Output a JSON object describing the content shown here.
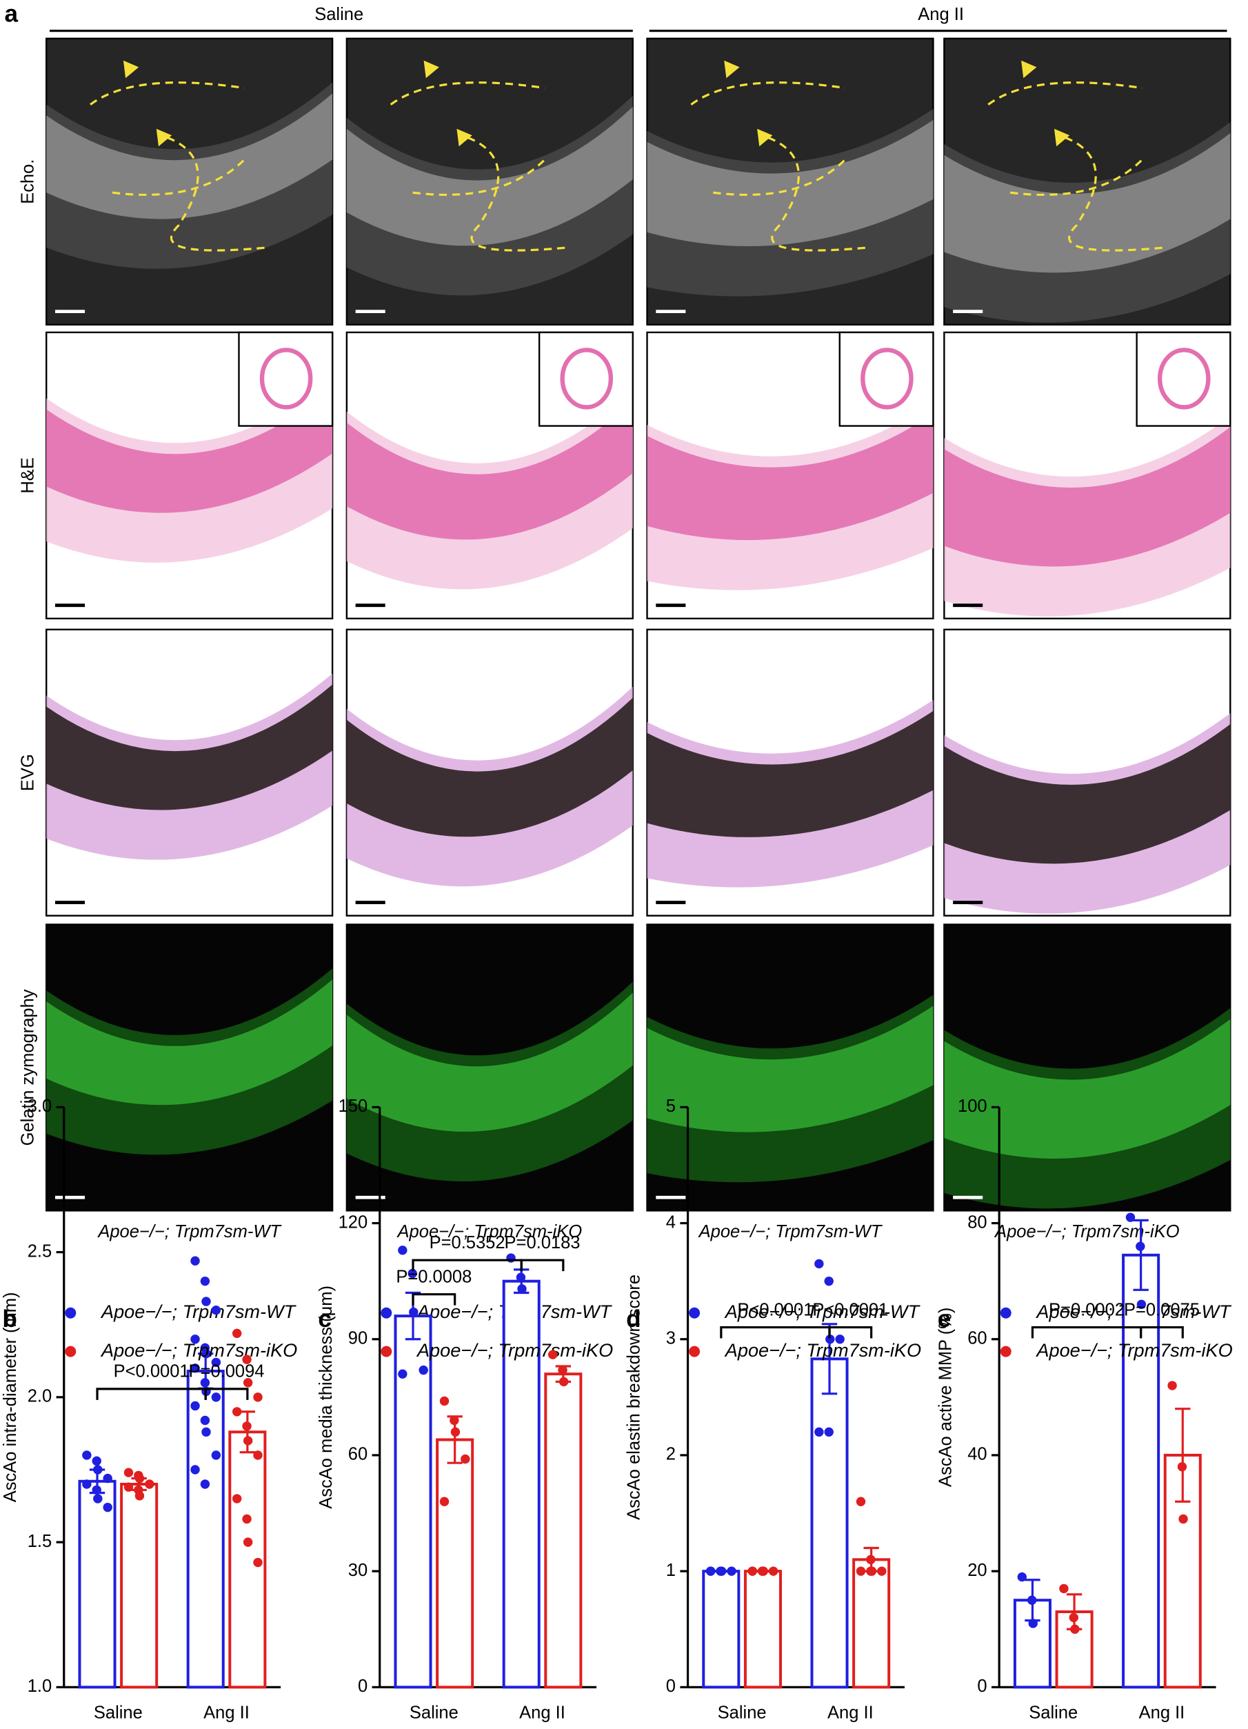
{
  "figure": {
    "panel_label": "a",
    "groups": [
      "Saline",
      "Ang II"
    ],
    "rows": [
      "Echo.",
      "H&E",
      "EVG",
      "Gelatin zymography"
    ],
    "columns": [
      "Apoe−/−; Trpm7sm-WT",
      "Apoe−/−; Trpm7sm-iKO",
      "Apoe−/−; Trpm7sm-WT",
      "Apoe−/−; Trpm7sm-iKO"
    ]
  },
  "chart_data": [
    {
      "type": "bar",
      "panel_label": "b",
      "ylabel": "AscAo intra-diameter (mm)",
      "categories": [
        "Saline",
        "Ang II"
      ],
      "ylim": [
        1,
        3
      ],
      "yticks": [
        {
          "value": 1,
          "label": "1.0"
        },
        1.5,
        {
          "value": 2,
          "label": "2.0"
        },
        2.5,
        {
          "value": 3,
          "label": "3.0"
        }
      ],
      "series": [
        {
          "name": "Apoe−/−; Trpm7sm-WT",
          "color": "#1f1fe0",
          "values": [
            1.71,
            2.09
          ],
          "errors": [
            0.04,
            0.06
          ],
          "points": [
            [
              1.8,
              1.78,
              1.75,
              1.72,
              1.7,
              1.68,
              1.65,
              1.62
            ],
            [
              2.47,
              2.4,
              2.33,
              2.3,
              2.2,
              2.17,
              2.15,
              2.12,
              2.1,
              2.05,
              2.02,
              2,
              1.97,
              1.92,
              1.88,
              1.8,
              1.75,
              1.7
            ]
          ]
        },
        {
          "name": "Apoe−/−; Trpm7sm-iKO",
          "color": "#e01f1f",
          "values": [
            1.7,
            1.88
          ],
          "errors": [
            0.02,
            0.07
          ],
          "points": [
            [
              1.74,
              1.73,
              1.72,
              1.7,
              1.69,
              1.68,
              1.66
            ],
            [
              2.22,
              2.13,
              2.05,
              2,
              1.95,
              1.9,
              1.85,
              1.8,
              1.65,
              1.58,
              1.5,
              1.43
            ]
          ]
        }
      ],
      "annotations": [
        "P<0.0001",
        "P=0.0094"
      ]
    },
    {
      "type": "bar",
      "panel_label": "c",
      "ylabel": "AscAo media thickness (μm)",
      "categories": [
        "Saline",
        "Ang II"
      ],
      "ylim": [
        0,
        150
      ],
      "yticks": [
        0,
        30,
        60,
        90,
        120,
        150
      ],
      "series": [
        {
          "name": "Apoe−/−; Trpm7sm-WT",
          "color": "#1f1fe0",
          "values": [
            96,
            105
          ],
          "errors": [
            6,
            3
          ],
          "points": [
            [
              113,
              107,
              97,
              82,
              81
            ],
            [
              111,
              106,
              103
            ]
          ]
        },
        {
          "name": "Apoe−/−; Trpm7sm-iKO",
          "color": "#e01f1f",
          "values": [
            64,
            81
          ],
          "errors": [
            6,
            2
          ],
          "points": [
            [
              74,
              69,
              66,
              59,
              48
            ],
            [
              86,
              82,
              79
            ]
          ]
        }
      ],
      "annotations": [
        "P=0.5352",
        "P=0.0008",
        "P=0.0183"
      ]
    },
    {
      "type": "bar",
      "panel_label": "d",
      "ylabel": "AscAo elastin breakdown score",
      "categories": [
        "Saline",
        "Ang II"
      ],
      "ylim": [
        0,
        5
      ],
      "yticks": [
        0,
        1,
        2,
        3,
        4,
        5
      ],
      "series": [
        {
          "name": "Apoe−/−; Trpm7sm-WT",
          "color": "#1f1fe0",
          "values": [
            1,
            2.83
          ],
          "errors": [
            0,
            0.3
          ],
          "points": [
            [
              1,
              1,
              1,
              1,
              1
            ],
            [
              3.65,
              3.5,
              3,
              3,
              2.2,
              2.2
            ]
          ]
        },
        {
          "name": "Apoe−/−; Trpm7sm-iKO",
          "color": "#e01f1f",
          "values": [
            1,
            1.1
          ],
          "errors": [
            0,
            0.1
          ],
          "points": [
            [
              1,
              1,
              1,
              1,
              1,
              1
            ],
            [
              1.6,
              1.1,
              1,
              1,
              1,
              1
            ]
          ]
        }
      ],
      "annotations": [
        "P<0.0001",
        "P<0.0001"
      ]
    },
    {
      "type": "bar",
      "panel_label": "e",
      "ylabel": "AscAo active MMP (%)",
      "categories": [
        "Saline",
        "Ang II"
      ],
      "ylim": [
        0,
        100
      ],
      "yticks": [
        0,
        20,
        40,
        60,
        80,
        100
      ],
      "series": [
        {
          "name": "Apoe−/−; Trpm7sm-WT",
          "color": "#1f1fe0",
          "values": [
            15,
            74.5
          ],
          "errors": [
            3.5,
            6
          ],
          "points": [
            [
              19,
              15,
              11
            ],
            [
              81,
              76,
              66
            ]
          ]
        },
        {
          "name": "Apoe−/−; Trpm7sm-iKO",
          "color": "#e01f1f",
          "values": [
            13,
            40
          ],
          "errors": [
            3,
            8
          ],
          "points": [
            [
              17,
              12,
              10
            ],
            [
              52,
              38,
              29
            ]
          ]
        }
      ],
      "annotations": [
        "P=0.0002",
        "P=0.0075"
      ]
    }
  ]
}
